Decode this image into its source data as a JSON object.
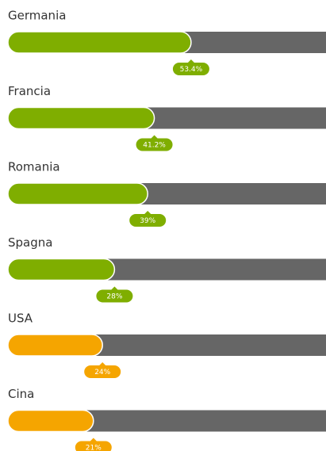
{
  "chart_data": {
    "type": "progress",
    "categories": [
      "Germania",
      "Francia",
      "Romania",
      "Spagna",
      "USA",
      "Cina"
    ],
    "values": [
      53.4,
      41.2,
      39,
      28,
      24,
      21
    ],
    "value_labels": [
      "53.4%",
      "41.2%",
      "39%",
      "28%",
      "24%",
      "21%"
    ],
    "colors": [
      "#7fae00",
      "#7fae00",
      "#7fae00",
      "#7fae00",
      "#f5a500",
      "#f5a500"
    ],
    "track_color": "#666666",
    "xlim": [
      0,
      100
    ]
  }
}
